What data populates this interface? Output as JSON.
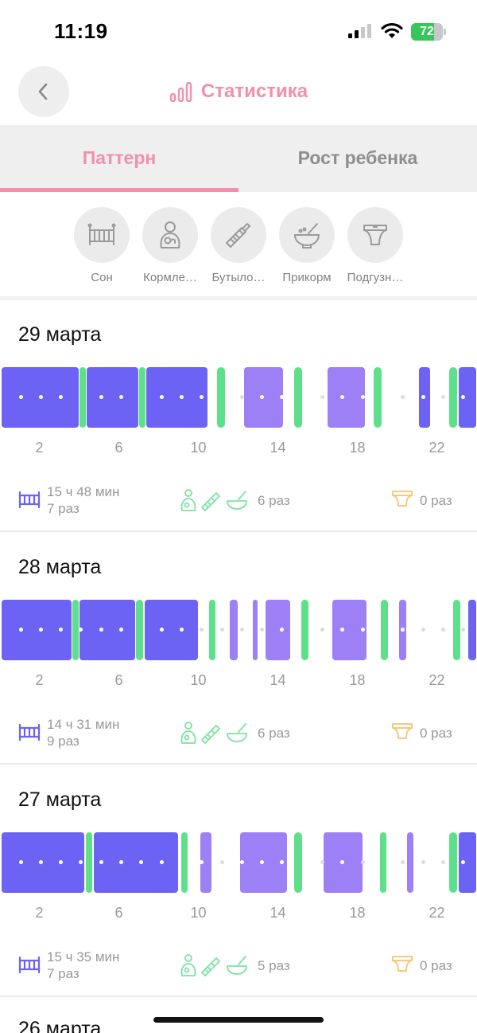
{
  "status_bar": {
    "time": "11:19",
    "battery_percent": 72,
    "battery_text": "72"
  },
  "header": {
    "title": "Статистика",
    "icon": "bar-chart-icon",
    "back_icon": "chevron-left-icon"
  },
  "tabs": [
    {
      "label": "Паттерн",
      "active": true
    },
    {
      "label": "Рост ребенка",
      "active": false
    }
  ],
  "filters": [
    {
      "label": "Сон",
      "icon": "crib-icon"
    },
    {
      "label": "Кормле…",
      "icon": "breastfeeding-icon"
    },
    {
      "label": "Бутыло…",
      "icon": "bottle-icon"
    },
    {
      "label": "Прикорм",
      "icon": "bowl-spoon-icon"
    },
    {
      "label": "Подгузн…",
      "icon": "diaper-icon"
    }
  ],
  "axis_hours": [
    "2",
    "6",
    "10",
    "14",
    "18",
    "22"
  ],
  "colors": {
    "accent": "#f28fab",
    "sleep": "#6c63f5",
    "nap": "#9e80f6",
    "feeding": "#5ee08a",
    "diaper": "#f7c97a"
  },
  "days": [
    {
      "date": "29 марта",
      "sleep_duration": "15 ч 48 мин",
      "sleep_count": "7 раз",
      "feed_count": "6 раз",
      "diaper_count": "0 раз",
      "timeline": [
        {
          "type": "sleep",
          "start": 0.0,
          "end": 4.0
        },
        {
          "type": "feed",
          "start": 4.0,
          "end": 4.3
        },
        {
          "type": "sleep",
          "start": 4.3,
          "end": 7.0
        },
        {
          "type": "feed",
          "start": 7.0,
          "end": 7.3
        },
        {
          "type": "sleep",
          "start": 7.3,
          "end": 10.5
        },
        {
          "type": "feed",
          "start": 10.9,
          "end": 11.3
        },
        {
          "type": "nap",
          "start": 12.2,
          "end": 14.3
        },
        {
          "type": "feed",
          "start": 14.8,
          "end": 15.2
        },
        {
          "type": "nap",
          "start": 16.4,
          "end": 18.4
        },
        {
          "type": "feed",
          "start": 18.8,
          "end": 19.2
        },
        {
          "type": "sleep",
          "start": 21.0,
          "end": 21.7
        },
        {
          "type": "feed",
          "start": 22.6,
          "end": 23.0
        },
        {
          "type": "sleep",
          "start": 23.0,
          "end": 24.0
        }
      ]
    },
    {
      "date": "28 марта",
      "sleep_duration": "14 ч 31 мин",
      "sleep_count": "9 раз",
      "feed_count": "6 раз",
      "diaper_count": "0 раз",
      "timeline": [
        {
          "type": "sleep",
          "start": 0.0,
          "end": 3.65
        },
        {
          "type": "feed",
          "start": 3.65,
          "end": 3.95
        },
        {
          "type": "sleep",
          "start": 3.95,
          "end": 6.85
        },
        {
          "type": "feed",
          "start": 6.85,
          "end": 7.2
        },
        {
          "type": "sleep",
          "start": 7.2,
          "end": 10.0
        },
        {
          "type": "feed",
          "start": 10.5,
          "end": 10.85
        },
        {
          "type": "nap",
          "start": 11.5,
          "end": 12.0
        },
        {
          "type": "nap",
          "start": 12.65,
          "end": 13.0
        },
        {
          "type": "nap",
          "start": 13.3,
          "end": 14.65
        },
        {
          "type": "feed",
          "start": 15.15,
          "end": 15.5
        },
        {
          "type": "nap",
          "start": 16.65,
          "end": 18.5
        },
        {
          "type": "feed",
          "start": 19.15,
          "end": 19.5
        },
        {
          "type": "nap",
          "start": 20.0,
          "end": 20.5
        },
        {
          "type": "feed",
          "start": 22.8,
          "end": 23.15
        },
        {
          "type": "sleep",
          "start": 23.5,
          "end": 24.0
        }
      ]
    },
    {
      "date": "27 марта",
      "sleep_duration": "15 ч 35 мин",
      "sleep_count": "7 раз",
      "feed_count": "5 раз",
      "diaper_count": "0 раз",
      "timeline": [
        {
          "type": "sleep",
          "start": 0.0,
          "end": 4.3
        },
        {
          "type": "feed",
          "start": 4.3,
          "end": 4.65
        },
        {
          "type": "sleep",
          "start": 4.65,
          "end": 9.0
        },
        {
          "type": "feed",
          "start": 9.1,
          "end": 9.45
        },
        {
          "type": "nap",
          "start": 10.0,
          "end": 10.7
        },
        {
          "type": "nap",
          "start": 12.0,
          "end": 14.5
        },
        {
          "type": "feed",
          "start": 14.8,
          "end": 15.2
        },
        {
          "type": "nap",
          "start": 16.2,
          "end": 18.3
        },
        {
          "type": "feed",
          "start": 19.1,
          "end": 19.45
        },
        {
          "type": "nap",
          "start": 20.4,
          "end": 20.85
        },
        {
          "type": "feed",
          "start": 22.6,
          "end": 23.0
        },
        {
          "type": "sleep",
          "start": 23.0,
          "end": 24.0
        }
      ]
    }
  ],
  "next_day": {
    "date": "26 марта"
  }
}
